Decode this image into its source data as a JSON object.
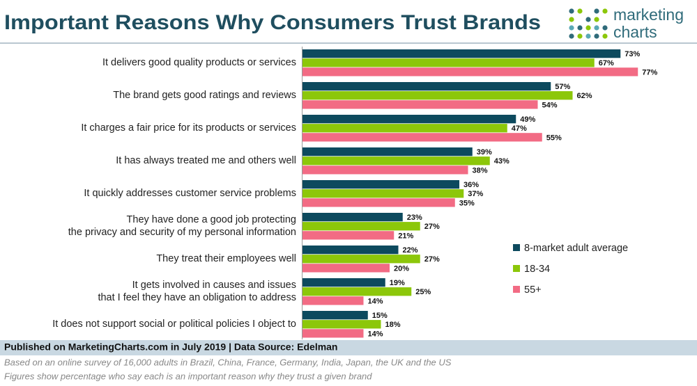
{
  "title": "Important Reasons Why Consumers Trust Brands",
  "logo": {
    "line1": "marketing",
    "line2": "charts"
  },
  "chart_data": {
    "type": "bar",
    "orientation": "horizontal",
    "categories": [
      "It delivers good quality products or services",
      "The brand gets good ratings and reviews",
      "It charges a fair price for its products or services",
      "It has always treated me and others well",
      "It quickly addresses customer service problems",
      "They have done a good job protecting\nthe privacy and security of my personal information",
      "They treat their employees well",
      "It gets involved in causes and issues\nthat I feel they have an obligation to address",
      "It does not support social or political policies I object to"
    ],
    "series": [
      {
        "name": "8-market adult average",
        "color": "#0d4a5e",
        "values": [
          73,
          57,
          49,
          39,
          36,
          23,
          22,
          19,
          15
        ],
        "value_labels": [
          "73%",
          "57%",
          "49%",
          "39%",
          "36%",
          "23%",
          "22%",
          "19%",
          "15%"
        ]
      },
      {
        "name": "18-34",
        "color": "#8cc70a",
        "values": [
          67,
          62,
          47,
          43,
          37,
          27,
          27,
          25,
          18
        ],
        "value_labels": [
          "67%",
          "62%",
          "47%",
          "43%",
          "37%",
          "27%",
          "27%",
          "25%",
          "18%"
        ]
      },
      {
        "name": "55+",
        "color": "#f26b84",
        "values": [
          77,
          54,
          55,
          38,
          35,
          21,
          20,
          14,
          14
        ],
        "value_labels": [
          "77%",
          "54%",
          "55%",
          "38%",
          "35%",
          "21%",
          "20%",
          "14%",
          "14%"
        ]
      }
    ],
    "legend": "right"
  },
  "footer": {
    "source": "Published on MarketingCharts.com in July 2019 | Data Source: Edelman",
    "notes": [
      "Based on an online survey of 16,000 adults in Brazil, China, France, Germany, India, Japan, the UK and the US",
      "Figures show percentage who say each is an important reason why they trust a given brand"
    ]
  }
}
